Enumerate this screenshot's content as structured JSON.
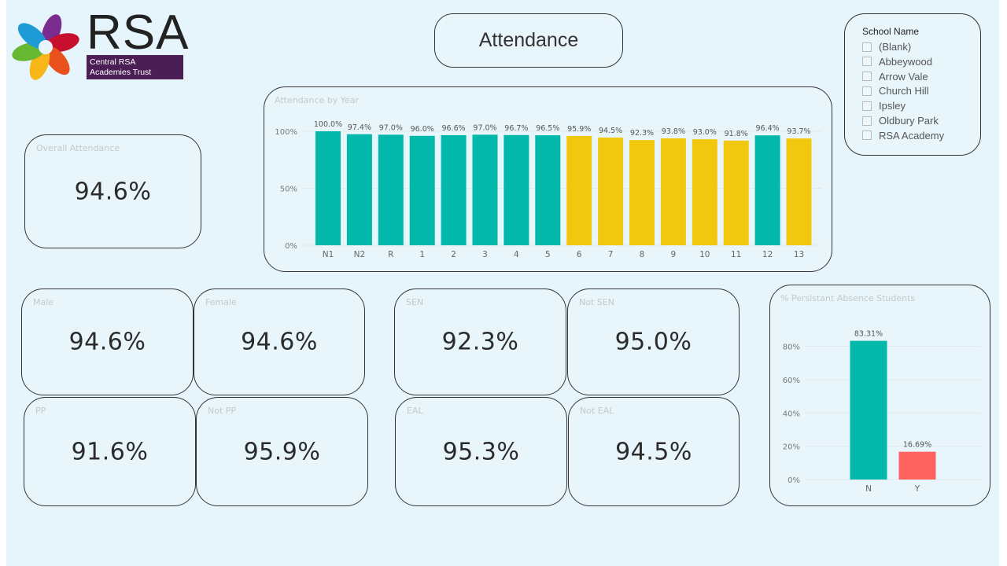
{
  "logo": {
    "name": "RSA",
    "subtitle_line1": "Central RSA",
    "subtitle_line2": "Academies Trust"
  },
  "title": "Attendance",
  "slicer": {
    "title": "School Name",
    "items": [
      "(Blank)",
      "Abbeywood",
      "Arrow Vale",
      "Church Hill",
      "Ipsley",
      "Oldbury Park",
      "RSA Academy"
    ]
  },
  "overall": {
    "label": "Overall Attendance",
    "value": "94.6%"
  },
  "cards": [
    {
      "label": "Male",
      "value": "94.6%"
    },
    {
      "label": "Female",
      "value": "94.6%"
    },
    {
      "label": "PP",
      "value": "91.6%"
    },
    {
      "label": "Not PP",
      "value": "95.9%"
    },
    {
      "label": "SEN",
      "value": "92.3%"
    },
    {
      "label": "Not SEN",
      "value": "95.0%"
    },
    {
      "label": "EAL",
      "value": "95.3%"
    },
    {
      "label": "Not EAL",
      "value": "94.5%"
    }
  ],
  "colors": {
    "teal": "#01b8aa",
    "yellow": "#f2c80f",
    "red": "#fd625e",
    "background": "#e6f5fb"
  },
  "chart_data": [
    {
      "type": "bar",
      "title": "Attendance by Year",
      "categories": [
        "N1",
        "N2",
        "R",
        "1",
        "2",
        "3",
        "4",
        "5",
        "6",
        "7",
        "8",
        "9",
        "10",
        "11",
        "12",
        "13"
      ],
      "values": [
        100.0,
        97.4,
        97.0,
        96.0,
        96.6,
        97.0,
        96.7,
        96.5,
        95.9,
        94.5,
        92.3,
        93.8,
        93.0,
        91.8,
        96.4,
        93.7
      ],
      "labels": [
        "100.0%",
        "97.4%",
        "97.0%",
        "96.0%",
        "96.6%",
        "97.0%",
        "96.7%",
        "96.5%",
        "95.9%",
        "94.5%",
        "92.3%",
        "93.8%",
        "93.0%",
        "91.8%",
        "96.4%",
        "93.7%"
      ],
      "bar_colors": [
        "teal",
        "teal",
        "teal",
        "teal",
        "teal",
        "teal",
        "teal",
        "teal",
        "yellow",
        "yellow",
        "yellow",
        "yellow",
        "yellow",
        "yellow",
        "teal",
        "yellow"
      ],
      "yticks": [
        "0%",
        "50%",
        "100%"
      ],
      "ylim": [
        0,
        100
      ],
      "grid": true
    },
    {
      "type": "bar",
      "title": "% Persistant Absence Students",
      "categories": [
        "N",
        "Y"
      ],
      "values": [
        83.31,
        16.69
      ],
      "labels": [
        "83.31%",
        "16.69%"
      ],
      "bar_colors": [
        "teal",
        "red"
      ],
      "yticks": [
        "0%",
        "20%",
        "40%",
        "60%",
        "80%"
      ],
      "ylim": [
        0,
        85
      ],
      "grid": true
    }
  ]
}
